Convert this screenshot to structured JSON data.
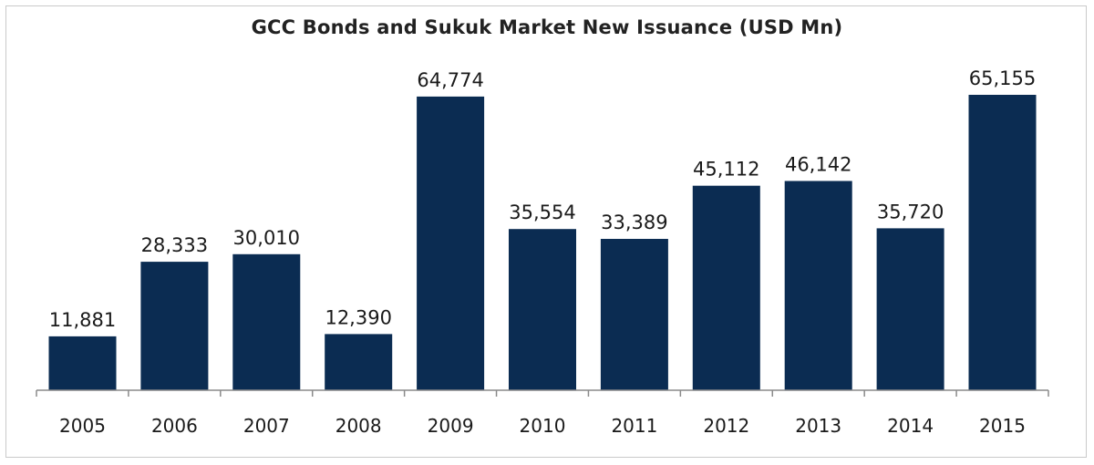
{
  "chart_data": {
    "type": "bar",
    "title": "GCC Bonds and Sukuk Market New Issuance (USD Mn)",
    "categories": [
      "2005",
      "2006",
      "2007",
      "2008",
      "2009",
      "2010",
      "2011",
      "2012",
      "2013",
      "2014",
      "2015"
    ],
    "values": [
      11881,
      28333,
      30010,
      12390,
      64774,
      35554,
      33389,
      45112,
      46142,
      35720,
      65155
    ],
    "value_labels": [
      "11,881",
      "28,333",
      "30,010",
      "12,390",
      "64,774",
      "35,554",
      "33,389",
      "45,112",
      "46,142",
      "35,720",
      "65,155"
    ],
    "xlabel": "",
    "ylabel": "",
    "ylim": [
      0,
      65155
    ],
    "grid": false,
    "legend": "none",
    "colors": {
      "bar": "#0b2c52",
      "axis": "#8a8a8a",
      "text": "#1a1a1a"
    }
  }
}
